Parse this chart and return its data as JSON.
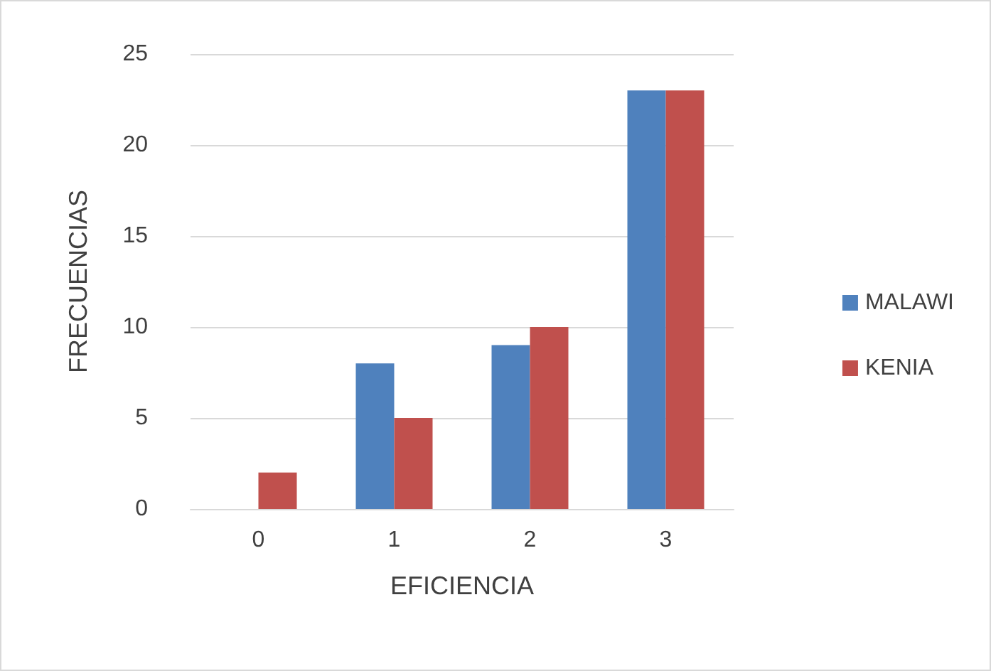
{
  "chart_data": {
    "type": "bar",
    "xlabel": "EFICIENCIA",
    "ylabel": "FRECUENCIAS",
    "categories": [
      "0",
      "1",
      "2",
      "3"
    ],
    "series": [
      {
        "name": "MALAWI",
        "color": "#4f81bd",
        "values": [
          0,
          8,
          9,
          23
        ]
      },
      {
        "name": "KENIA",
        "color": "#c0504d",
        "values": [
          2,
          5,
          10,
          23
        ]
      }
    ],
    "ylim": [
      0,
      25
    ],
    "yticks": [
      0,
      5,
      10,
      15,
      20,
      25
    ],
    "grid": "y",
    "legend": "right"
  }
}
